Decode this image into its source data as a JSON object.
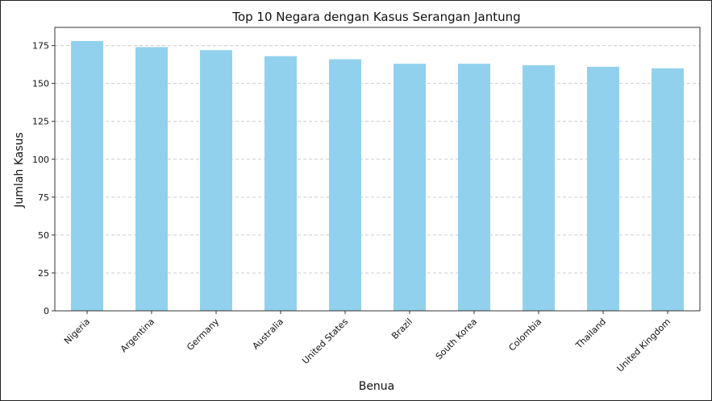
{
  "chart_data": {
    "type": "bar",
    "title": "Top 10 Negara dengan Kasus Serangan Jantung",
    "xlabel": "Benua",
    "ylabel": "Jumlah Kasus",
    "categories": [
      "Nigeria",
      "Argentina",
      "Germany",
      "Australia",
      "United States",
      "Brazil",
      "South Korea",
      "Colombia",
      "Thailand",
      "United Kingdom"
    ],
    "values": [
      178,
      174,
      172,
      168,
      166,
      163,
      163,
      162,
      161,
      160
    ],
    "ylim": [
      0,
      187
    ],
    "yticks": [
      0,
      25,
      50,
      75,
      100,
      125,
      150,
      175
    ],
    "grid": "y-dashed",
    "bar_color": "#92d1ed"
  }
}
